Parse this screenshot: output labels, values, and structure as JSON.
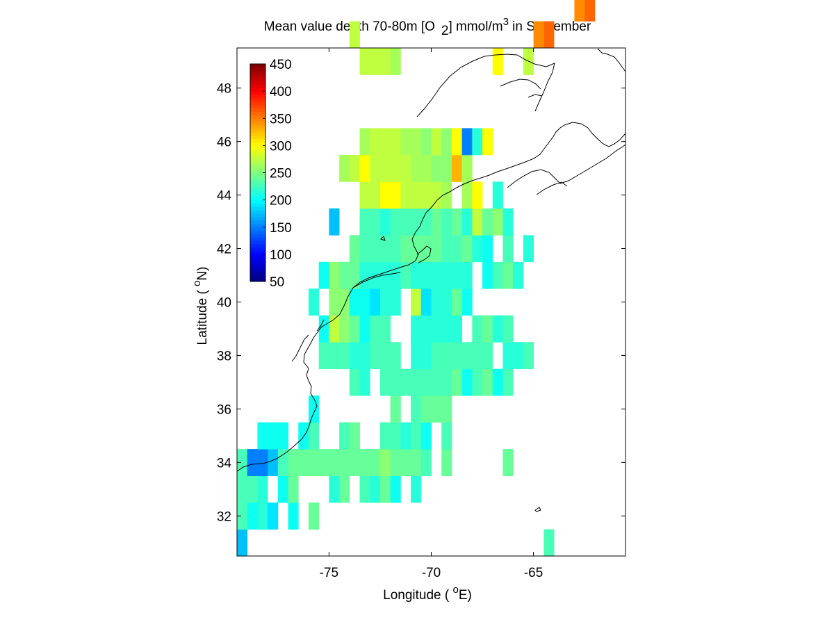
{
  "chart_data": {
    "type": "heatmap",
    "title": {
      "prefix": "Mean value depth 70-80m [O",
      "subscript": "2",
      "middle": "] mmol/m",
      "superscript": "3",
      "suffix": " in September"
    },
    "xlabel": {
      "prefix": "Longitude ( ",
      "superscript": "o",
      "suffix": "E)"
    },
    "ylabel": {
      "prefix": "Latitude ( ",
      "superscript": "o",
      "suffix": "N)"
    },
    "x_range": [
      -79.5,
      -60.5
    ],
    "y_range": [
      30.5,
      49.5
    ],
    "x_ticks": [
      -75,
      -70,
      -65
    ],
    "y_ticks": [
      32,
      34,
      36,
      38,
      40,
      42,
      44,
      46,
      48
    ],
    "grid": false,
    "colormap": "jet",
    "colorbar": {
      "placement": "upper-left inside",
      "range": [
        50,
        450
      ],
      "ticks": [
        50,
        100,
        150,
        200,
        250,
        300,
        350,
        400,
        450
      ]
    },
    "cell_size_deg": 1,
    "grid_origin": {
      "lon": -79.5,
      "lat": 30.5
    },
    "rows_south_to_north": [
      "B.............................F",
      "FDEC.D.G.........................",
      "FFE.DG...EG.FEGD.E...........",
      "FAABFGGGGGGGGGHGGGF.G.....G.",
      "..DDD.DF..FG..FFEFD.F.....",
      ".......D.......G.FGGG.........",
      "...........FE.FFFFFFFGDFGDF",
      "........FFFEEFFF.EEFFFFFF.EEF",
      "........DJHGDFF..EEEEE.FGEF.",
      ".......E.HHDDCEE.JCEEGD.....",
      "........DHGGEEEEFEEEEEE.DFGE",
      "...........GFFFFGGGGFFGED.F.E",
      ".........B..FFEFFFFGFGEJGHE.",
      "............JJKKJJJJI.IK.E.",
      "..........IJKJJJJIIHHLI.....",
      "............IJJJIIHJHKAEK...",
      "..........................................",
      "..................................",
      "............JJJI.........K..J..",
      "...........J.................MN",
      ".................................MN"
    ]
  }
}
